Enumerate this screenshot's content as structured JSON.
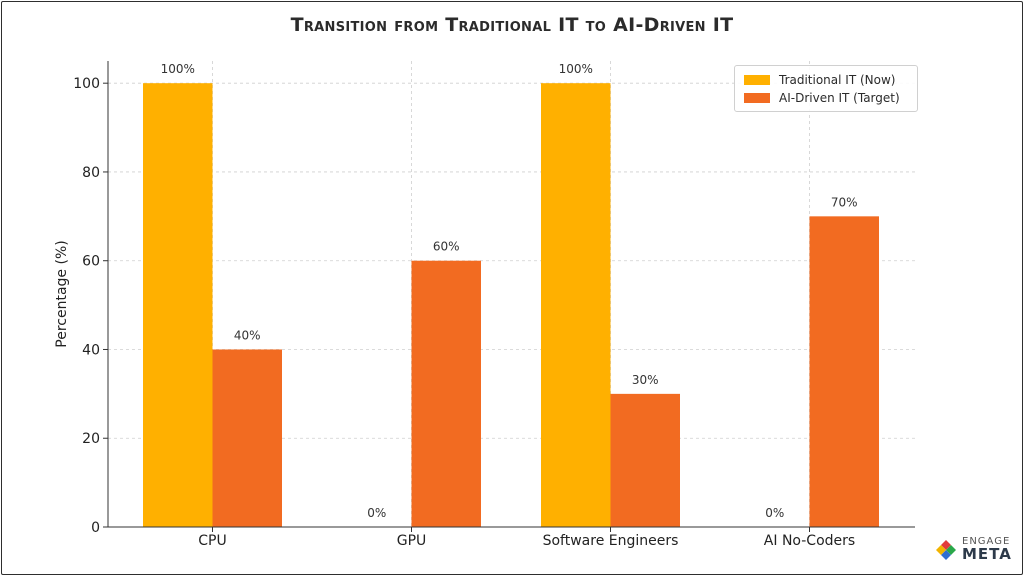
{
  "chart_data": {
    "type": "bar",
    "title": "Transition from Traditional IT to AI-Driven IT",
    "xlabel": "",
    "ylabel": "Percentage (%)",
    "categories": [
      "CPU",
      "GPU",
      "Software Engineers",
      "AI No-Coders"
    ],
    "series": [
      {
        "name": "Traditional IT (Now)",
        "values": [
          100,
          0,
          100,
          0
        ],
        "labels": [
          "100%",
          "0%",
          "100%",
          "0%"
        ],
        "color": "#ffb000"
      },
      {
        "name": "AI-Driven IT (Target)",
        "values": [
          40,
          60,
          30,
          70
        ],
        "labels": [
          "40%",
          "60%",
          "30%",
          "70%"
        ],
        "color": "#f26b21"
      }
    ],
    "ylim": [
      0,
      105
    ],
    "yticks": [
      0,
      20,
      40,
      60,
      80,
      100
    ],
    "grid": true,
    "legend_position": "top-right"
  },
  "logo": {
    "top_text": "ENGAGE",
    "bottom_text": "META"
  }
}
